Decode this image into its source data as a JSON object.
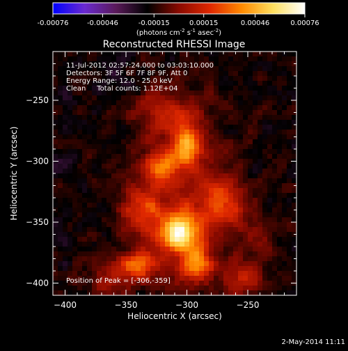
{
  "colorbar": {
    "ticks": [
      "-0.00076",
      "-0.00046",
      "-0.00015",
      "0.00015",
      "0.00046",
      "0.00076"
    ],
    "tick_values": [
      -0.00076,
      -0.00046,
      -0.00015,
      0.00015,
      0.00046,
      0.00076
    ],
    "units_prefix": "(photons cm",
    "units_exp1": "-2",
    "units_mid": " s",
    "units_exp2": "-1",
    "units_mid2": " asec",
    "units_exp3": "-2",
    "units_suffix": ")",
    "colormap_stops": [
      "#0000ff",
      "#6a2ad0",
      "#5a1a5a",
      "#000000",
      "#8a0a00",
      "#e02800",
      "#ff8a00",
      "#ffe060",
      "#ffffff"
    ]
  },
  "chart_data": {
    "type": "heatmap",
    "title": "Reconstructed RHESSI Image",
    "xlabel": "Heliocentric X (arcsec)",
    "ylabel": "Heliocentric Y (arcsec)",
    "xlim": [
      -410,
      -210
    ],
    "ylim": [
      -410,
      -210
    ],
    "x_ticks": [
      -400,
      -350,
      -300,
      -250
    ],
    "y_ticks": [
      -400,
      -350,
      -300,
      -250
    ],
    "x_tick_labels": [
      "−400",
      "−350",
      "−300",
      "−250"
    ],
    "y_tick_labels": [
      "−400",
      "−350",
      "−300",
      "−250"
    ],
    "value_range": [
      -0.00076,
      0.00076
    ],
    "peak": [
      -306,
      -359
    ],
    "annotations": [
      "11-Jul-2012 02:57:24.000 to 03:03:10.000",
      "Detectors: 3F 5F 6F 7F 8F 9F, Att 0",
      "Energy Range: 12.0 - 25.0 keV",
      "Clean     Total counts: 1.12E+04"
    ],
    "peak_label": "Position of Peak = [-306,-359]",
    "sources": [
      {
        "x": -306,
        "y": -359,
        "sx": 11,
        "sy": 11,
        "amp": 0.00076
      },
      {
        "x": -300,
        "y": -285,
        "sx": 8,
        "sy": 12,
        "amp": 0.00048
      },
      {
        "x": -322,
        "y": -305,
        "sx": 10,
        "sy": 10,
        "amp": 0.0004
      },
      {
        "x": -340,
        "y": -385,
        "sx": 10,
        "sy": 8,
        "amp": 0.00048
      },
      {
        "x": -292,
        "y": -385,
        "sx": 9,
        "sy": 9,
        "amp": 0.00044
      },
      {
        "x": -335,
        "y": -340,
        "sx": 12,
        "sy": 12,
        "amp": 0.00032
      },
      {
        "x": -270,
        "y": -335,
        "sx": 12,
        "sy": 14,
        "amp": 0.0003
      },
      {
        "x": -318,
        "y": -260,
        "sx": 16,
        "sy": 12,
        "amp": 0.00024
      },
      {
        "x": -255,
        "y": -395,
        "sx": 12,
        "sy": 10,
        "amp": 0.00026
      },
      {
        "x": -362,
        "y": -395,
        "sx": 12,
        "sy": 10,
        "amp": 0.00022
      },
      {
        "x": -300,
        "y": -330,
        "sx": 30,
        "sy": 50,
        "amp": 0.00022
      },
      {
        "x": -240,
        "y": -365,
        "sx": 10,
        "sy": 10,
        "amp": 0.00014
      }
    ],
    "background_level": -0.00018,
    "grid": false
  },
  "footer": {
    "date": "2-May-2014 11:11"
  }
}
